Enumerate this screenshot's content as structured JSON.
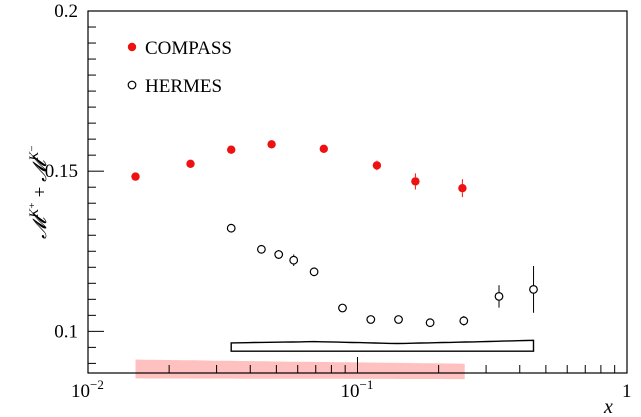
{
  "chart_data": {
    "type": "scatter",
    "xscale": "log",
    "xlim": [
      0.01,
      1
    ],
    "ylim": [
      0.087,
      0.2
    ],
    "grid": false,
    "legend_position": "top-left",
    "xlabel": "x",
    "ylabel": "𝓜K⁺ + 𝓜K⁻",
    "ylabel_parts": {
      "m1": "𝓜",
      "s1": "K⁺",
      "plus": " + ",
      "m2": "𝓜",
      "s2": "K⁻"
    },
    "x_ticks": [
      {
        "value": 0.01,
        "base": "10",
        "exp": "−2"
      },
      {
        "value": 0.1,
        "base": "10",
        "exp": "−1"
      },
      {
        "value": 1,
        "base": "1",
        "exp": ""
      }
    ],
    "y_ticks": [
      {
        "value": 0.1,
        "label": "0.1"
      },
      {
        "value": 0.15,
        "label": "0.15"
      },
      {
        "value": 0.2,
        "label": "0.2"
      }
    ],
    "series": [
      {
        "name": "COMPASS",
        "marker": "filled-circle",
        "color": "#ee1111",
        "points": [
          {
            "x": 0.015,
            "y": 0.1483,
            "err": 0.0008
          },
          {
            "x": 0.024,
            "y": 0.1523,
            "err": 0.0008
          },
          {
            "x": 0.034,
            "y": 0.1567,
            "err": 0.0009
          },
          {
            "x": 0.048,
            "y": 0.1584,
            "err": 0.0009
          },
          {
            "x": 0.075,
            "y": 0.157,
            "err": 0.001
          },
          {
            "x": 0.118,
            "y": 0.1518,
            "err": 0.0015
          },
          {
            "x": 0.164,
            "y": 0.1468,
            "err": 0.0025
          },
          {
            "x": 0.245,
            "y": 0.1447,
            "err": 0.0028
          }
        ]
      },
      {
        "name": "HERMES",
        "marker": "open-circle",
        "color": "#000000",
        "points": [
          {
            "x": 0.034,
            "y": 0.1322,
            "err": 0.0006
          },
          {
            "x": 0.044,
            "y": 0.1256,
            "err": 0.0012
          },
          {
            "x": 0.051,
            "y": 0.124,
            "err": 0.0014
          },
          {
            "x": 0.058,
            "y": 0.1222,
            "err": 0.0018
          },
          {
            "x": 0.069,
            "y": 0.1186,
            "err": 0.0008
          },
          {
            "x": 0.088,
            "y": 0.1073,
            "err": 0.0006
          },
          {
            "x": 0.112,
            "y": 0.1037,
            "err": 0.0006
          },
          {
            "x": 0.142,
            "y": 0.1037,
            "err": 0.0006
          },
          {
            "x": 0.186,
            "y": 0.1027,
            "err": 0.0007
          },
          {
            "x": 0.248,
            "y": 0.1033,
            "err": 0.0015
          },
          {
            "x": 0.335,
            "y": 0.1109,
            "err": 0.0035
          },
          {
            "x": 0.45,
            "y": 0.1131,
            "err": 0.0073
          }
        ]
      }
    ],
    "systematic_bands": [
      {
        "series": "COMPASS",
        "color": "#ffc0c0",
        "style": "filled",
        "x_range": [
          0.015,
          0.25
        ],
        "lower": [
          [
            0.015,
            0.0853
          ],
          [
            0.25,
            0.0851
          ]
        ],
        "upper": [
          [
            0.015,
            0.0912
          ],
          [
            0.05,
            0.0906
          ],
          [
            0.25,
            0.0899
          ]
        ]
      },
      {
        "series": "HERMES",
        "color": "#000000",
        "style": "outline",
        "x_range": [
          0.034,
          0.45
        ],
        "lower": [
          [
            0.034,
            0.0938
          ],
          [
            0.45,
            0.0938
          ]
        ],
        "upper": [
          [
            0.034,
            0.0964
          ],
          [
            0.07,
            0.0968
          ],
          [
            0.14,
            0.0962
          ],
          [
            0.3,
            0.0968
          ],
          [
            0.45,
            0.0972
          ]
        ]
      }
    ]
  }
}
